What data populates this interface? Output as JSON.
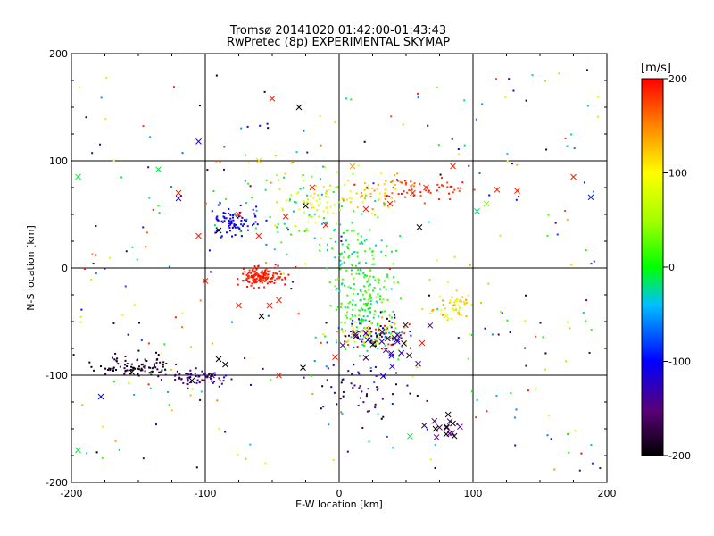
{
  "chart_data": {
    "type": "scatter",
    "title": "Tromsø 20141020 01:42:00-01:43:43",
    "subtitle": "RwPretec (8p) EXPERIMENTAL SKYMAP",
    "xlabel": "E-W location [km]",
    "ylabel": "N-S location [km]",
    "xlim": [
      -200,
      200
    ],
    "ylim": [
      -200,
      200
    ],
    "x_ticks": [
      "-200",
      "-100",
      "0",
      "100",
      "200"
    ],
    "y_ticks": [
      "-200",
      "-100",
      "0",
      "100",
      "200"
    ],
    "grid_x": [
      -100,
      0,
      100
    ],
    "grid_y": [
      -100,
      0,
      100
    ],
    "colorbar": {
      "label": "[m/s]",
      "range": [
        -200,
        200
      ],
      "ticks": [
        "200",
        "100",
        "0",
        "-100",
        "-200"
      ],
      "colormap": "black-purple-blue-cyan-green-yellow-red"
    },
    "clusters": [
      {
        "x": -58,
        "y": -8,
        "sx": 7,
        "sy": 4,
        "n": 150,
        "v": [
          180,
          200
        ],
        "marker": "dot"
      },
      {
        "x": -150,
        "y": -92,
        "sx": 15,
        "sy": 5,
        "n": 90,
        "v": [
          -200,
          -170
        ],
        "marker": "dot"
      },
      {
        "x": -105,
        "y": -103,
        "sx": 10,
        "sy": 4,
        "n": 60,
        "v": [
          -190,
          -110
        ],
        "marker": "dot"
      },
      {
        "x": -80,
        "y": 42,
        "sx": 10,
        "sy": 7,
        "n": 80,
        "v": [
          -130,
          -90
        ],
        "marker": "dot"
      },
      {
        "x": 20,
        "y": -30,
        "sx": 12,
        "sy": 20,
        "n": 170,
        "v": [
          -30,
          40
        ],
        "marker": "dot"
      },
      {
        "x": 25,
        "y": -62,
        "sx": 15,
        "sy": 7,
        "n": 170,
        "v": [
          -200,
          200
        ],
        "marker": "dot"
      },
      {
        "x": 20,
        "y": -115,
        "sx": 18,
        "sy": 12,
        "n": 55,
        "v": [
          -200,
          -110
        ],
        "marker": "dot"
      },
      {
        "x": 65,
        "y": 75,
        "sx": 15,
        "sy": 6,
        "n": 50,
        "v": [
          170,
          200
        ],
        "marker": "dot"
      },
      {
        "x": 30,
        "y": 70,
        "sx": 10,
        "sy": 8,
        "n": 50,
        "v": [
          100,
          160
        ],
        "marker": "dot"
      },
      {
        "x": 88,
        "y": -35,
        "sx": 10,
        "sy": 7,
        "n": 50,
        "v": [
          60,
          150
        ],
        "marker": "dot"
      },
      {
        "x": -15,
        "y": 60,
        "sx": 20,
        "sy": 15,
        "n": 80,
        "v": [
          40,
          120
        ],
        "marker": "dot"
      },
      {
        "x": 10,
        "y": 15,
        "sx": 10,
        "sy": 15,
        "n": 60,
        "v": [
          -40,
          30
        ],
        "marker": "dot"
      },
      {
        "x": -40,
        "y": 60,
        "sx": 30,
        "sy": 20,
        "n": 60,
        "v": [
          -60,
          30
        ],
        "marker": "dot"
      },
      {
        "x": 75,
        "y": -150,
        "sx": 8,
        "sy": 4,
        "n": 12,
        "v": [
          -200,
          -150
        ],
        "marker": "x"
      },
      {
        "x": 30,
        "y": -70,
        "sx": 15,
        "sy": 10,
        "n": 25,
        "v": [
          -200,
          -100
        ],
        "marker": "x"
      }
    ],
    "scatter_background": {
      "n": 300,
      "xlim": [
        -195,
        195
      ],
      "ylim": [
        -190,
        185
      ],
      "v": [
        -200,
        200
      ]
    },
    "x_markers": [
      [
        -50,
        158,
        190
      ],
      [
        -30,
        150,
        -200
      ],
      [
        -120,
        70,
        190
      ],
      [
        -105,
        30,
        190
      ],
      [
        -90,
        35,
        -200
      ],
      [
        -75,
        50,
        190
      ],
      [
        -60,
        30,
        190
      ],
      [
        -120,
        65,
        -120
      ],
      [
        -135,
        92,
        -10
      ],
      [
        -195,
        85,
        -10
      ],
      [
        -178,
        -120,
        -100
      ],
      [
        -195,
        -170,
        -10
      ],
      [
        -85,
        -90,
        -200
      ],
      [
        -75,
        -35,
        190
      ],
      [
        -52,
        -35,
        190
      ],
      [
        -40,
        48,
        190
      ],
      [
        -25,
        58,
        -200
      ],
      [
        -20,
        75,
        190
      ],
      [
        -10,
        40,
        190
      ],
      [
        10,
        95,
        140
      ],
      [
        20,
        55,
        190
      ],
      [
        38,
        60,
        190
      ],
      [
        55,
        70,
        190
      ],
      [
        60,
        38,
        -200
      ],
      [
        65,
        75,
        190
      ],
      [
        85,
        95,
        190
      ],
      [
        110,
        60,
        40
      ],
      [
        118,
        73,
        190
      ],
      [
        133,
        72,
        190
      ],
      [
        175,
        85,
        190
      ],
      [
        188,
        66,
        -100
      ],
      [
        103,
        53,
        -20
      ],
      [
        53,
        -157,
        -10
      ],
      [
        80,
        -155,
        -200
      ],
      [
        85,
        -145,
        -200
      ],
      [
        72,
        -150,
        -200
      ],
      [
        -90,
        -85,
        -200
      ],
      [
        -3,
        -83,
        190
      ],
      [
        -27,
        -93,
        -200
      ],
      [
        -45,
        -100,
        190
      ],
      [
        -95,
        -100,
        -180
      ],
      [
        -110,
        -105,
        -200
      ],
      [
        -58,
        -45,
        -200
      ],
      [
        62,
        -70,
        190
      ],
      [
        -100,
        -12,
        190
      ],
      [
        -45,
        -30,
        190
      ],
      [
        -155,
        -97,
        -200
      ],
      [
        -105,
        118,
        -120
      ],
      [
        80,
        -45,
        80
      ],
      [
        -60,
        100,
        120
      ]
    ]
  }
}
